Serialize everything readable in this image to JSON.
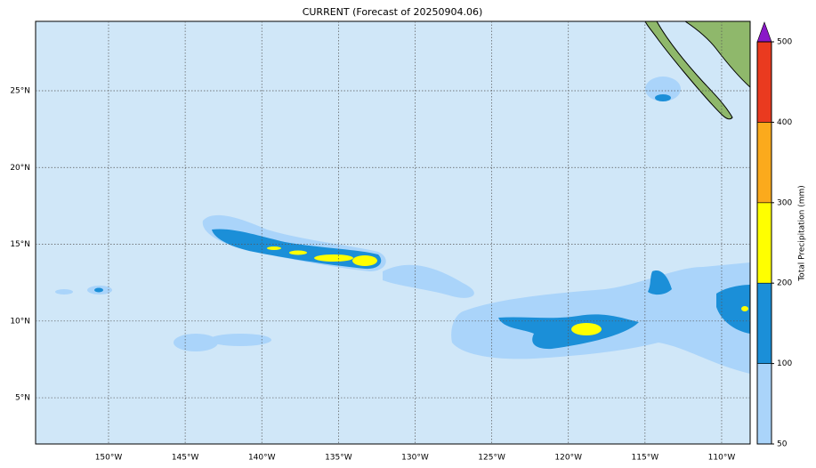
{
  "map": {
    "title": "CURRENT (Forecast of 20250904.06)",
    "xlim": [
      -154.76,
      -108.14
    ],
    "ylim": [
      1.99,
      29.52
    ],
    "xticks": [
      {
        "value": -150,
        "label": "150°W"
      },
      {
        "value": -145,
        "label": "145°W"
      },
      {
        "value": -140,
        "label": "140°W"
      },
      {
        "value": -135,
        "label": "135°W"
      },
      {
        "value": -130,
        "label": "130°W"
      },
      {
        "value": -125,
        "label": "125°W"
      },
      {
        "value": -120,
        "label": "120°W"
      },
      {
        "value": -115,
        "label": "115°W"
      },
      {
        "value": -110,
        "label": "110°W"
      }
    ],
    "yticks": [
      {
        "value": 5,
        "label": "5°N"
      },
      {
        "value": 10,
        "label": "10°N"
      },
      {
        "value": 15,
        "label": "15°N"
      },
      {
        "value": 20,
        "label": "20°N"
      },
      {
        "value": 25,
        "label": "25°N"
      }
    ],
    "grid": true,
    "colorbar": {
      "label": "Total Precipitation (mm)",
      "ticks": [
        50,
        100,
        200,
        300,
        400,
        500
      ],
      "colors": [
        "#aad4fa",
        "#1b8fd8",
        "#ffff00",
        "#fbaa1c",
        "#ea3a1f"
      ],
      "extend_color": "#8a18c8"
    }
  }
}
